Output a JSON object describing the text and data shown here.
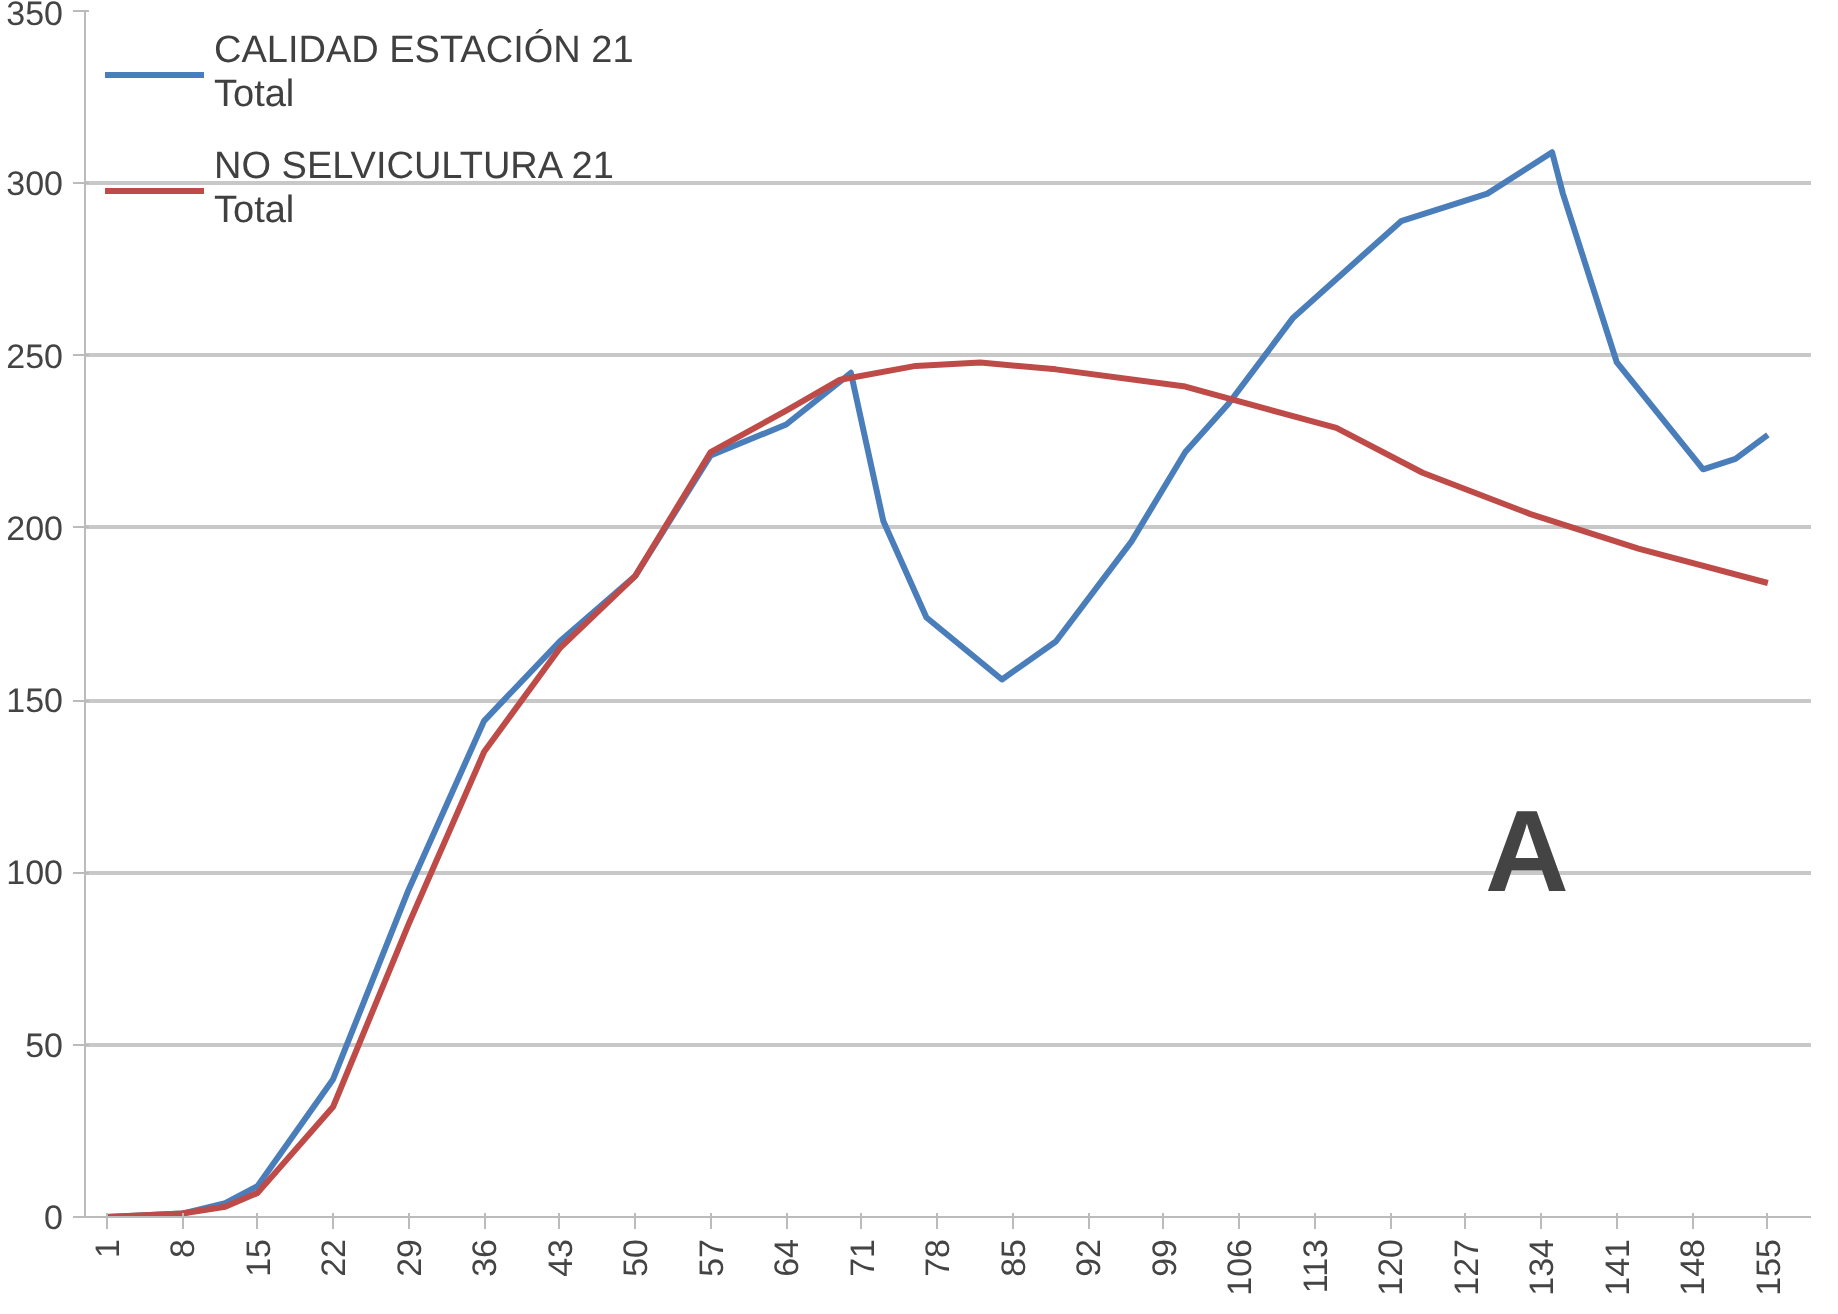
{
  "chart_data": {
    "type": "line",
    "xlim": [
      -1,
      159
    ],
    "xticks": [
      1,
      8,
      15,
      22,
      29,
      36,
      43,
      50,
      57,
      64,
      71,
      78,
      85,
      92,
      99,
      106,
      113,
      120,
      127,
      134,
      141,
      148,
      155
    ],
    "ylim": [
      0,
      350
    ],
    "yticks": [
      0,
      50,
      100,
      150,
      200,
      250,
      300,
      350
    ],
    "grid": "y",
    "legend": "top left",
    "marker": "none",
    "line_style": "solid",
    "annotations": [
      "A"
    ],
    "series": [
      {
        "name": "CALIDAD ESTACIÓN 21\nTotal",
        "color": "#4a7ebb",
        "x": [
          1,
          8,
          12,
          15,
          22,
          29,
          36,
          43,
          50,
          57,
          64,
          70,
          73,
          77,
          84,
          89,
          96,
          101,
          105,
          111,
          121,
          129,
          135,
          136,
          141,
          149,
          152,
          155
        ],
        "values": [
          0,
          1,
          4,
          9,
          40,
          95,
          144,
          167,
          186,
          221,
          230,
          245,
          202,
          174,
          156,
          167,
          196,
          222,
          236,
          261,
          289,
          297,
          309,
          297,
          248,
          217,
          220,
          227
        ]
      },
      {
        "name": "NO SELVICULTURA 21\nTotal",
        "color": "#be4b48",
        "x": [
          1,
          8,
          12,
          15,
          22,
          29,
          36,
          43,
          50,
          57,
          64,
          69,
          76,
          82,
          89,
          101,
          115,
          123,
          133,
          143,
          155
        ],
        "values": [
          0,
          1,
          3,
          7,
          32,
          85,
          135,
          165,
          186,
          222,
          234,
          243,
          247,
          248,
          246,
          241,
          229,
          216,
          204,
          194,
          184
        ]
      }
    ]
  }
}
